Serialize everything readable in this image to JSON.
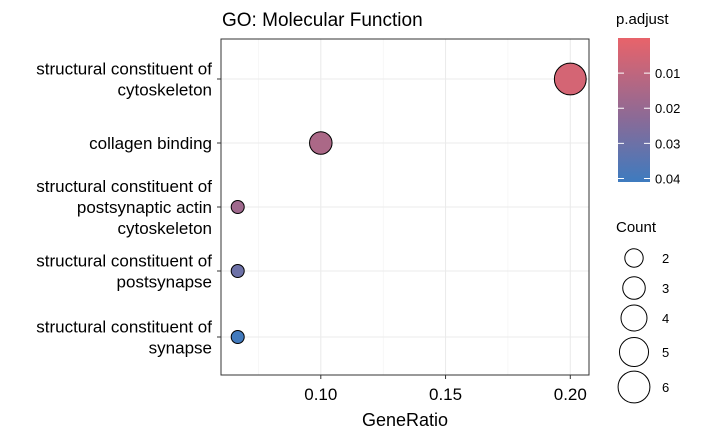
{
  "chart_data": {
    "type": "scatter",
    "title": "GO: Molecular Function",
    "xlabel": "GeneRatio",
    "ylabel": "",
    "xlim": [
      0.06,
      0.2075
    ],
    "xticks": [
      0.1,
      0.15,
      0.2
    ],
    "xtick_labels": [
      "0.10",
      "0.15",
      "0.20"
    ],
    "grid": true,
    "categories": [
      [
        "structural constituent of",
        "cytoskeleton"
      ],
      [
        "collagen binding"
      ],
      [
        "structural constituent of",
        "postsynaptic actin",
        "cytoskeleton"
      ],
      [
        "structural constituent of",
        "postsynapse"
      ],
      [
        "structural constituent of",
        "synapse"
      ]
    ],
    "points": [
      {
        "x": 0.2,
        "count": 6,
        "p_adjust": 0.005
      },
      {
        "x": 0.1,
        "count": 3,
        "p_adjust": 0.015
      },
      {
        "x": 0.0667,
        "count": 1,
        "p_adjust": 0.018
      },
      {
        "x": 0.0667,
        "count": 1,
        "p_adjust": 0.03
      },
      {
        "x": 0.0667,
        "count": 1,
        "p_adjust": 0.04
      }
    ],
    "color_legend": {
      "title": "p.adjust",
      "ticks": [
        0.01,
        0.02,
        0.03,
        0.04
      ],
      "tick_labels": [
        "0.01",
        "0.02",
        "0.03",
        "0.04"
      ],
      "range": [
        0.0,
        0.041
      ],
      "low_color": "#e8636a",
      "high_color": "#3e7bbf"
    },
    "size_legend": {
      "title": "Count",
      "values": [
        2,
        3,
        4,
        5,
        6
      ],
      "labels": [
        "2",
        "3",
        "4",
        "5",
        "6"
      ],
      "position": "right"
    }
  }
}
